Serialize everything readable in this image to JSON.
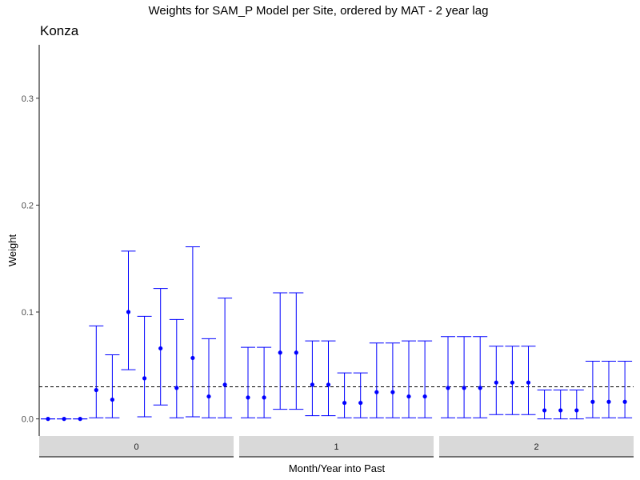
{
  "chart_data": {
    "type": "scatter",
    "title": "Weights for SAM_P Model per Site, ordered by MAT - 2 year lag",
    "subtitle": "Konza",
    "xlabel": "Month/Year into Past",
    "ylabel": "Weight",
    "ylim": [
      -0.016,
      0.35
    ],
    "yticks": [
      0.0,
      0.1,
      0.2,
      0.3
    ],
    "ytick_labels": [
      "0.0",
      "0.1",
      "0.2",
      "0.3"
    ],
    "reference_line": 0.03,
    "grid": false,
    "point_color": "#0000ff",
    "errorbar_color": "#0000ff",
    "strip_fill": "#d9d9d9",
    "panels": [
      {
        "label": "0",
        "points": [
          {
            "y": 0.0,
            "lo": 0.0,
            "hi": 0.0
          },
          {
            "y": 0.0,
            "lo": 0.0,
            "hi": 0.0
          },
          {
            "y": 0.0,
            "lo": 0.0,
            "hi": 0.0
          },
          {
            "y": 0.027,
            "lo": 0.001,
            "hi": 0.087
          },
          {
            "y": 0.018,
            "lo": 0.001,
            "hi": 0.06
          },
          {
            "y": 0.1,
            "lo": 0.046,
            "hi": 0.157
          },
          {
            "y": 0.038,
            "lo": 0.002,
            "hi": 0.096
          },
          {
            "y": 0.066,
            "lo": 0.013,
            "hi": 0.122
          },
          {
            "y": 0.029,
            "lo": 0.001,
            "hi": 0.093
          },
          {
            "y": 0.057,
            "lo": 0.002,
            "hi": 0.161
          },
          {
            "y": 0.021,
            "lo": 0.001,
            "hi": 0.075
          },
          {
            "y": 0.032,
            "lo": 0.001,
            "hi": 0.113
          }
        ]
      },
      {
        "label": "1",
        "points": [
          {
            "y": 0.02,
            "lo": 0.001,
            "hi": 0.067
          },
          {
            "y": 0.02,
            "lo": 0.001,
            "hi": 0.067
          },
          {
            "y": 0.062,
            "lo": 0.009,
            "hi": 0.118
          },
          {
            "y": 0.062,
            "lo": 0.009,
            "hi": 0.118
          },
          {
            "y": 0.032,
            "lo": 0.003,
            "hi": 0.073
          },
          {
            "y": 0.032,
            "lo": 0.003,
            "hi": 0.073
          },
          {
            "y": 0.015,
            "lo": 0.001,
            "hi": 0.043
          },
          {
            "y": 0.015,
            "lo": 0.001,
            "hi": 0.043
          },
          {
            "y": 0.025,
            "lo": 0.001,
            "hi": 0.071
          },
          {
            "y": 0.025,
            "lo": 0.001,
            "hi": 0.071
          },
          {
            "y": 0.021,
            "lo": 0.001,
            "hi": 0.073
          },
          {
            "y": 0.021,
            "lo": 0.001,
            "hi": 0.073
          }
        ]
      },
      {
        "label": "2",
        "points": [
          {
            "y": 0.029,
            "lo": 0.001,
            "hi": 0.077
          },
          {
            "y": 0.029,
            "lo": 0.001,
            "hi": 0.077
          },
          {
            "y": 0.029,
            "lo": 0.001,
            "hi": 0.077
          },
          {
            "y": 0.034,
            "lo": 0.004,
            "hi": 0.068
          },
          {
            "y": 0.034,
            "lo": 0.004,
            "hi": 0.068
          },
          {
            "y": 0.034,
            "lo": 0.004,
            "hi": 0.068
          },
          {
            "y": 0.008,
            "lo": 0.0,
            "hi": 0.027
          },
          {
            "y": 0.008,
            "lo": 0.0,
            "hi": 0.027
          },
          {
            "y": 0.008,
            "lo": 0.0,
            "hi": 0.027
          },
          {
            "y": 0.016,
            "lo": 0.001,
            "hi": 0.054
          },
          {
            "y": 0.016,
            "lo": 0.001,
            "hi": 0.054
          },
          {
            "y": 0.016,
            "lo": 0.001,
            "hi": 0.054
          }
        ]
      }
    ]
  }
}
